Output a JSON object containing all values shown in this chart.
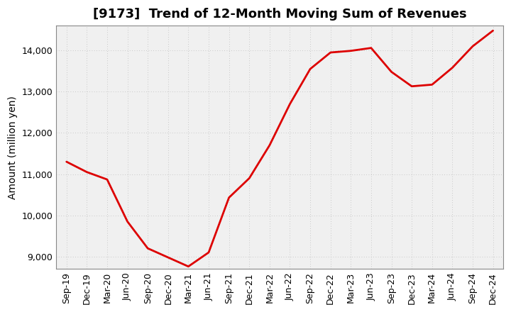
{
  "title": "[9173]  Trend of 12-Month Moving Sum of Revenues",
  "ylabel": "Amount (million yen)",
  "line_color": "#dd0000",
  "line_width": 2.0,
  "background_color": "#ffffff",
  "plot_bg_color": "#f0f0f0",
  "grid_color": "#bbbbbb",
  "x_labels": [
    "Sep-19",
    "Dec-19",
    "Mar-20",
    "Jun-20",
    "Sep-20",
    "Dec-20",
    "Mar-21",
    "Jun-21",
    "Sep-21",
    "Dec-21",
    "Mar-22",
    "Jun-22",
    "Sep-22",
    "Dec-22",
    "Mar-23",
    "Jun-23",
    "Sep-23",
    "Dec-23",
    "Mar-24",
    "Jun-24",
    "Sep-24",
    "Dec-24"
  ],
  "y_values": [
    11300,
    11050,
    10870,
    9850,
    9200,
    8980,
    8760,
    9100,
    10430,
    10900,
    11700,
    12700,
    13550,
    13950,
    13990,
    14060,
    13480,
    13130,
    13170,
    13580,
    14100,
    14480
  ],
  "ylim": [
    8700,
    14600
  ],
  "yticks": [
    9000,
    10000,
    11000,
    12000,
    13000,
    14000
  ],
  "title_fontsize": 13,
  "ylabel_fontsize": 10,
  "tick_fontsize": 9
}
